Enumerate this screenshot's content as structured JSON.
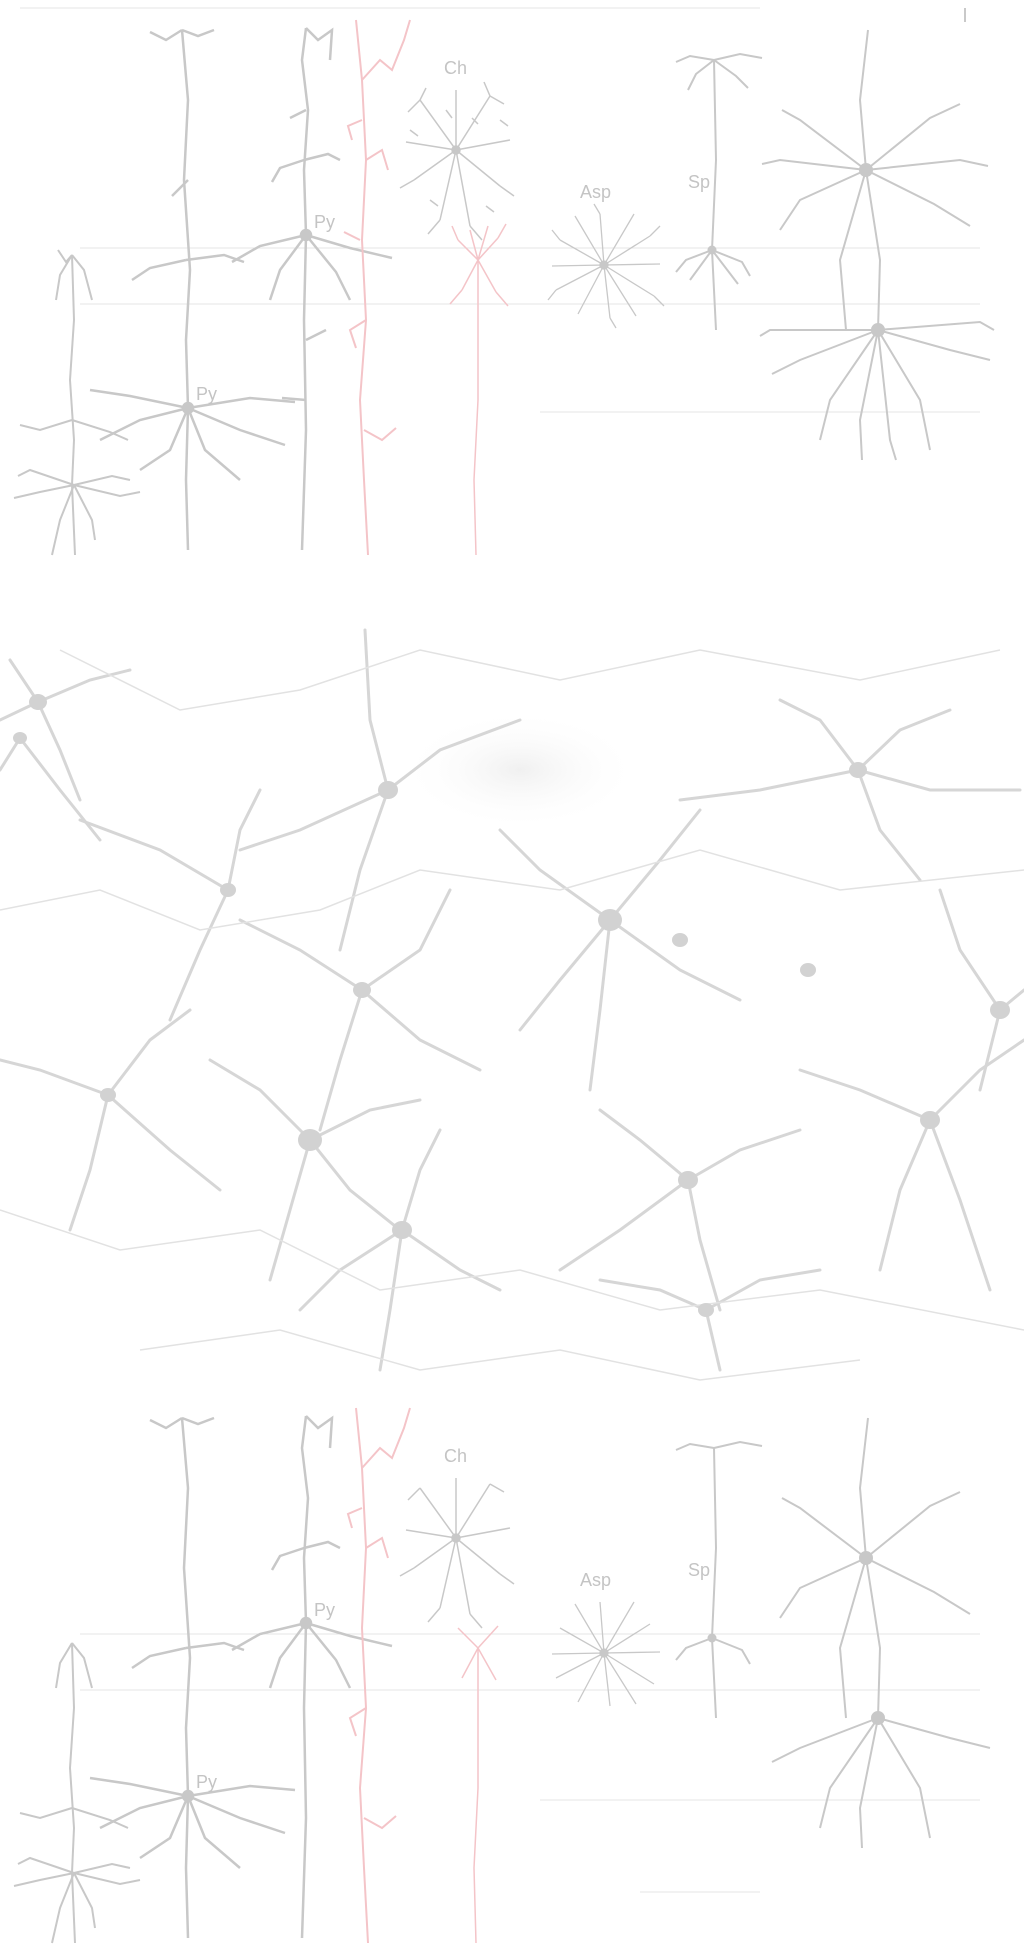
{
  "top_panel": {
    "labels": {
      "py_upper": "Py",
      "py_lower": "Py",
      "ch": "Ch",
      "asp": "Asp",
      "sp": "Sp"
    },
    "corner_mark": "I"
  },
  "bottom_panel": {
    "labels": {
      "py_upper": "Py",
      "py_lower": "Py",
      "ch": "Ch",
      "asp": "Asp",
      "sp": "Sp"
    }
  },
  "colors": {
    "neuron_gray": "#c8c8c8",
    "highlight_pink": "#f4c4c8",
    "photo_gray": "#d3d3d3",
    "background": "#ffffff"
  }
}
